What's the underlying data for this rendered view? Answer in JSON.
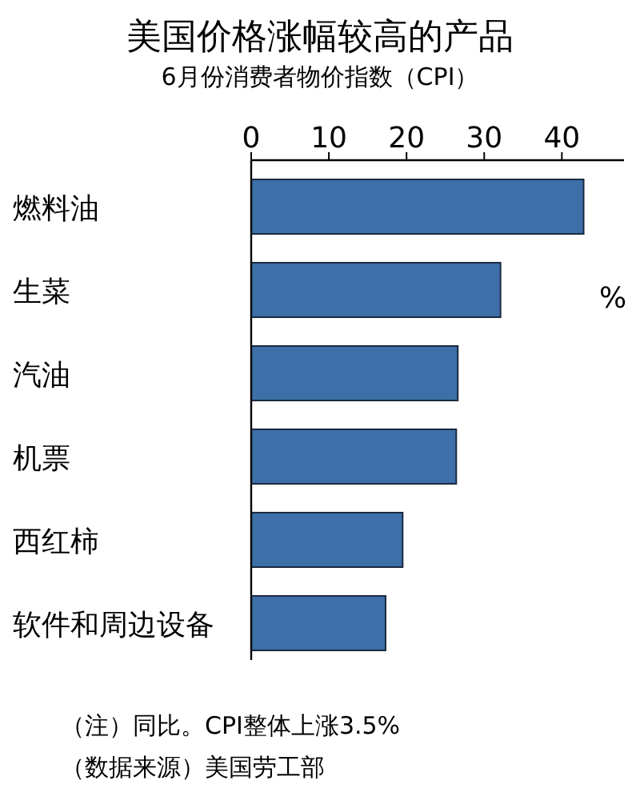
{
  "chart_data": {
    "type": "bar",
    "orientation": "horizontal",
    "title": "美国价格涨幅较高的产品",
    "subtitle": "6月份消费者物价指数（CPI）",
    "xlabel": "%",
    "categories": [
      "燃料油",
      "生菜",
      "汽油",
      "机票",
      "西红柿",
      "软件和周边设备"
    ],
    "values": [
      42.8,
      32.1,
      26.6,
      26.4,
      19.5,
      17.3
    ],
    "color": "#3d6fa8",
    "xlim": [
      0,
      48
    ],
    "xticks": [
      0,
      10,
      20,
      30,
      40
    ],
    "annotations": [
      "（注）同比。CPI整体上涨3.5%",
      "（数据来源）美国劳工部"
    ]
  }
}
